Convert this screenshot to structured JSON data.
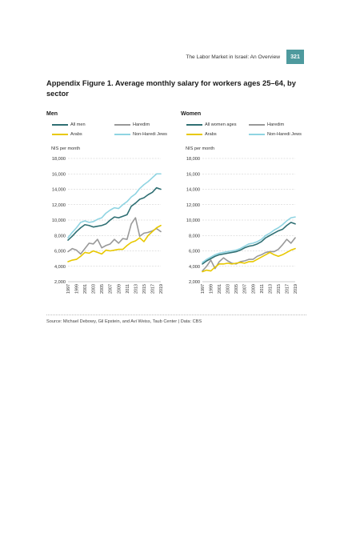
{
  "header": {
    "running_title": "The Labor Market in Israel: An Overview",
    "page_number": "321",
    "accent_color": "#4e9a9e"
  },
  "figure": {
    "title": "Appendix Figure 1. Average monthly salary for workers ages 25–64, by sector"
  },
  "source": "Source: Michael Debowy, Gil Epstein, and Avi Weiss, Taub Center | Data: CBS",
  "chart_data": [
    {
      "type": "line",
      "title": "Men",
      "ylabel": "NIS per month",
      "ylim": [
        2000,
        18000
      ],
      "yticks": [
        "2,000",
        "4,000",
        "6,000",
        "8,000",
        "10,000",
        "12,000",
        "14,000",
        "16,000",
        "18,000"
      ],
      "xticks": [
        "1997",
        "1999",
        "2001",
        "2003",
        "2005",
        "2007",
        "2009",
        "2011",
        "2013",
        "2015",
        "2017",
        "2019"
      ],
      "grid": "horizontal dashed",
      "legend_position": "top",
      "x": [
        1997,
        1998,
        1999,
        2000,
        2001,
        2002,
        2003,
        2004,
        2005,
        2006,
        2007,
        2008,
        2009,
        2010,
        2011,
        2012,
        2013,
        2014,
        2015,
        2016,
        2017,
        2018,
        2019
      ],
      "series": [
        {
          "name": "All men",
          "color": "#2f6f73",
          "values": [
            7400,
            7900,
            8500,
            9000,
            9400,
            9300,
            9100,
            9200,
            9300,
            9500,
            10000,
            10400,
            10300,
            10500,
            10700,
            11800,
            12200,
            12700,
            12900,
            13300,
            13600,
            14200,
            14000
          ]
        },
        {
          "name": "Haredim",
          "color": "#999999",
          "values": [
            5900,
            6300,
            6100,
            5600,
            6300,
            7000,
            6900,
            7500,
            6400,
            6700,
            6900,
            7500,
            7000,
            7600,
            7500,
            9500,
            10300,
            7900,
            8300,
            8400,
            8600,
            8900,
            8500
          ]
        },
        {
          "name": "Arabs",
          "color": "#e8c800",
          "values": [
            4600,
            4800,
            4900,
            5300,
            5800,
            5700,
            6000,
            5800,
            5600,
            6100,
            6000,
            6100,
            6200,
            6200,
            6700,
            7100,
            7300,
            7700,
            7200,
            8000,
            8500,
            9000,
            9300
          ]
        },
        {
          "name": "Non-Haredi Jews",
          "color": "#8fd4e2",
          "values": [
            7700,
            8400,
            9000,
            9700,
            9900,
            9700,
            9800,
            10100,
            10300,
            10900,
            11300,
            11600,
            11500,
            12000,
            12400,
            13000,
            13400,
            14100,
            14600,
            15000,
            15500,
            16000,
            16000
          ]
        }
      ]
    },
    {
      "type": "line",
      "title": "Women",
      "ylabel": "NIS per month",
      "ylim": [
        2000,
        18000
      ],
      "yticks": [
        "2,000",
        "4,000",
        "6,000",
        "8,000",
        "10,000",
        "12,000",
        "14,000",
        "16,000",
        "18,000"
      ],
      "xticks": [
        "1997",
        "1999",
        "2001",
        "2003",
        "2005",
        "2007",
        "2009",
        "2011",
        "2013",
        "2015",
        "2017",
        "2019"
      ],
      "grid": "horizontal dashed",
      "legend_position": "top",
      "x": [
        1997,
        1998,
        1999,
        2000,
        2001,
        2002,
        2003,
        2004,
        2005,
        2006,
        2007,
        2008,
        2009,
        2010,
        2011,
        2012,
        2013,
        2014,
        2015,
        2016,
        2017,
        2018,
        2019
      ],
      "series": [
        {
          "name": "All women ages",
          "color": "#2f6f73",
          "values": [
            4300,
            4700,
            5000,
            5300,
            5500,
            5600,
            5700,
            5800,
            5900,
            6100,
            6400,
            6600,
            6700,
            6900,
            7200,
            7700,
            8000,
            8300,
            8600,
            8800,
            9300,
            9700,
            9500
          ]
        },
        {
          "name": "Haredim",
          "color": "#999999",
          "values": [
            3400,
            4000,
            4800,
            3700,
            4600,
            5100,
            4700,
            4400,
            4300,
            4600,
            4700,
            4900,
            4900,
            5300,
            5500,
            5800,
            5900,
            5900,
            6200,
            6800,
            7500,
            7000,
            7700
          ]
        },
        {
          "name": "Arabs",
          "color": "#e8c800",
          "values": [
            3300,
            3500,
            3400,
            3900,
            4300,
            4300,
            4400,
            4300,
            4400,
            4500,
            4400,
            4600,
            4600,
            4900,
            5200,
            5500,
            5800,
            5500,
            5300,
            5500,
            5800,
            6100,
            6300
          ]
        },
        {
          "name": "Non-Haredi Jews",
          "color": "#8fd4e2",
          "values": [
            4500,
            4900,
            5200,
            5500,
            5700,
            5800,
            5900,
            6000,
            6100,
            6300,
            6600,
            6900,
            7000,
            7200,
            7500,
            8000,
            8300,
            8700,
            9000,
            9400,
            9900,
            10300,
            10400
          ]
        }
      ]
    }
  ]
}
